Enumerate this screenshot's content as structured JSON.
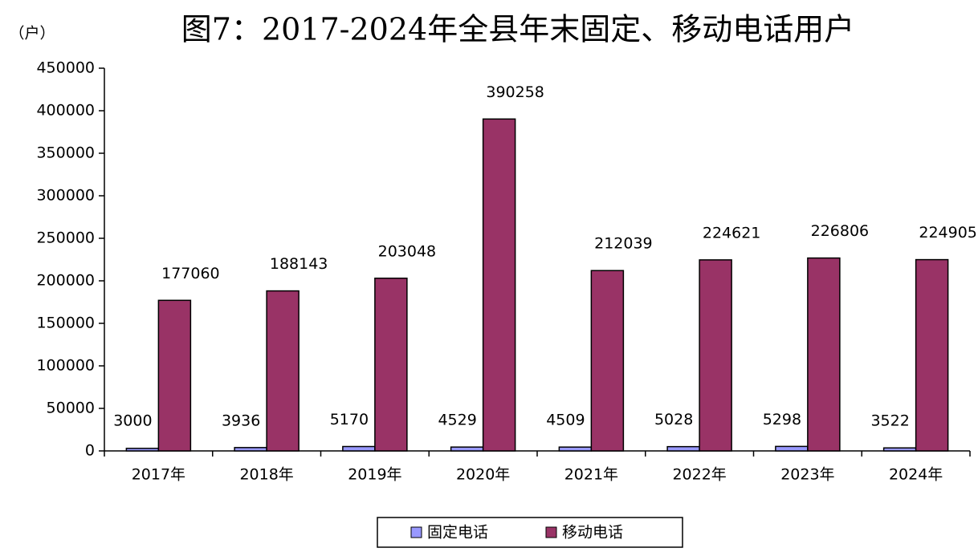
{
  "chart_data": {
    "type": "bar",
    "title": "图7：2017-2024年全县年末固定、移动电话用户",
    "y_label": "（户）",
    "categories": [
      "2017年",
      "2018年",
      "2019年",
      "2020年",
      "2021年",
      "2022年",
      "2023年",
      "2024年"
    ],
    "series": [
      {
        "name": "固定电话",
        "color": "#9999ff",
        "values": [
          3000,
          3936,
          5170,
          4529,
          4509,
          5028,
          5298,
          3522
        ]
      },
      {
        "name": "移动电话",
        "color": "#993366",
        "values": [
          177060,
          188143,
          203048,
          390258,
          212039,
          224621,
          226806,
          224905
        ]
      }
    ],
    "ylim": [
      0,
      450000
    ],
    "yticks": [
      0,
      50000,
      100000,
      150000,
      200000,
      250000,
      300000,
      350000,
      400000,
      450000
    ],
    "grid": false
  }
}
